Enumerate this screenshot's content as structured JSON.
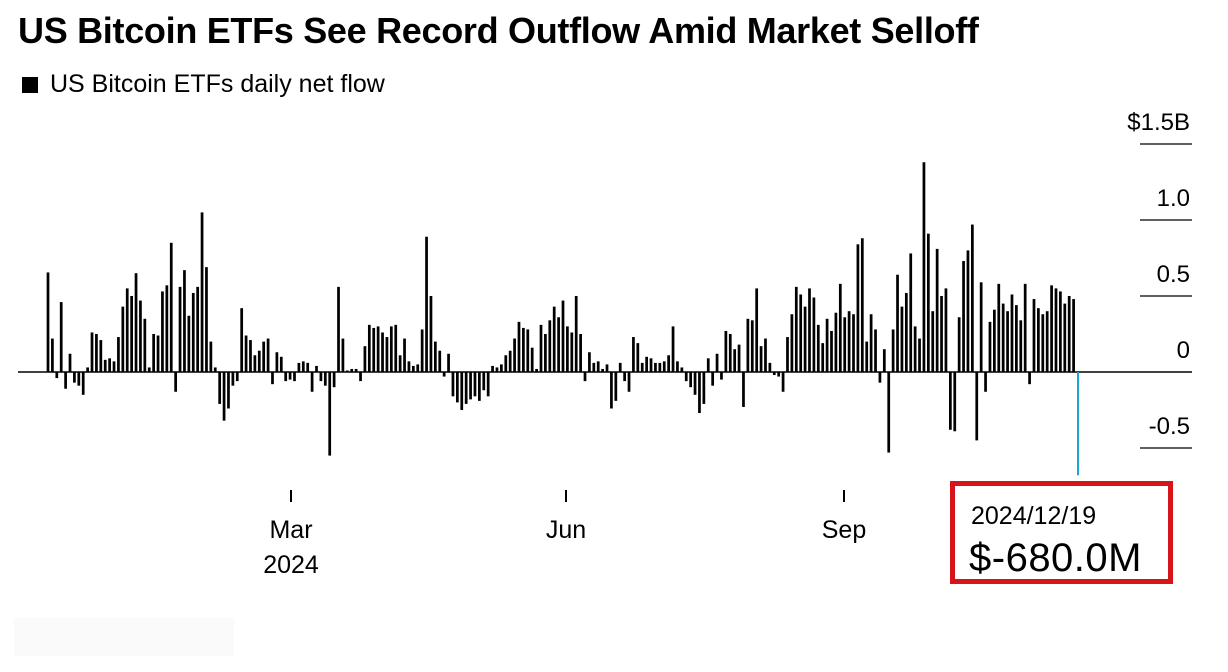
{
  "title": "US Bitcoin ETFs See Record Outflow Amid Market Selloff",
  "legend_label": "US Bitcoin ETFs daily net flow",
  "colors": {
    "bars": "#000000",
    "highlight": "#1aa7d8",
    "callout_border": "#d7141a",
    "gridline": "#000000"
  },
  "callout": {
    "date": "2024/12/19",
    "value": "$-680.0M"
  },
  "chart_data": {
    "type": "bar",
    "title": "US Bitcoin ETFs See Record Outflow Amid Market Selloff",
    "series": [
      {
        "name": "US Bitcoin ETFs daily net flow"
      }
    ],
    "ylabel": "",
    "ylim": [
      -0.5,
      1.5
    ],
    "y_ticks": [
      {
        "value": 1.5,
        "label": "$1.5B"
      },
      {
        "value": 1.0,
        "label": "1.0"
      },
      {
        "value": 0.5,
        "label": "0.5"
      },
      {
        "value": 0.0,
        "label": "0"
      },
      {
        "value": -0.5,
        "label": "-0.5"
      }
    ],
    "x_ticks": [
      {
        "date": "2024-03-01",
        "label": "Mar",
        "sublabel": "2024"
      },
      {
        "date": "2024-06-01",
        "label": "Jun",
        "sublabel": ""
      },
      {
        "date": "2024-09-01",
        "label": "Sep",
        "sublabel": ""
      }
    ],
    "highlight": {
      "date": "2024-12-19",
      "value": -0.68
    },
    "values": [
      0.655,
      0.22,
      -0.04,
      0.46,
      -0.11,
      0.12,
      -0.07,
      -0.09,
      -0.15,
      0.03,
      0.26,
      0.25,
      0.21,
      0.08,
      0.09,
      0.07,
      0.23,
      0.43,
      0.55,
      0.5,
      0.65,
      0.47,
      0.35,
      0.03,
      0.25,
      0.24,
      0.53,
      0.57,
      0.85,
      -0.13,
      0.56,
      0.67,
      0.37,
      0.52,
      0.56,
      1.05,
      0.69,
      0.2,
      0.03,
      -0.21,
      -0.32,
      -0.24,
      -0.09,
      -0.06,
      0.42,
      0.24,
      0.21,
      0.11,
      0.14,
      0.2,
      0.22,
      -0.08,
      0.13,
      0.1,
      -0.06,
      -0.05,
      -0.06,
      0.06,
      0.07,
      0.06,
      -0.13,
      0.04,
      -0.06,
      -0.09,
      -0.55,
      -0.1,
      0.56,
      0.22,
      0.01,
      0.02,
      0.02,
      -0.06,
      0.17,
      0.31,
      0.29,
      0.3,
      0.26,
      0.23,
      0.3,
      0.31,
      0.11,
      0.22,
      0.07,
      0.04,
      0.05,
      0.28,
      0.89,
      0.5,
      0.2,
      0.14,
      -0.03,
      0.12,
      -0.16,
      -0.2,
      -0.25,
      -0.21,
      -0.18,
      -0.16,
      -0.19,
      -0.12,
      -0.16,
      0.04,
      0.03,
      0.05,
      0.11,
      0.14,
      0.22,
      0.33,
      0.29,
      0.28,
      0.16,
      0.02,
      0.31,
      0.25,
      0.34,
      0.43,
      0.36,
      0.47,
      0.3,
      0.26,
      0.5,
      0.25,
      -0.06,
      0.13,
      0.06,
      0.07,
      0.02,
      0.05,
      -0.24,
      -0.19,
      0.06,
      -0.06,
      -0.13,
      0.23,
      0.19,
      0.06,
      0.1,
      0.09,
      0.06,
      0.06,
      0.07,
      0.11,
      0.3,
      0.07,
      0.03,
      -0.06,
      -0.1,
      -0.15,
      -0.27,
      -0.21,
      0.09,
      -0.09,
      0.12,
      -0.05,
      0.27,
      0.25,
      0.15,
      0.18,
      -0.23,
      0.35,
      0.34,
      0.55,
      0.17,
      0.22,
      0.06,
      -0.02,
      -0.03,
      -0.13,
      0.23,
      0.38,
      0.56,
      0.51,
      0.43,
      0.55,
      0.49,
      0.31,
      0.19,
      0.35,
      0.27,
      0.39,
      0.58,
      0.36,
      0.4,
      0.38,
      0.84,
      0.88,
      0.2,
      0.38,
      0.28,
      -0.07,
      0.15,
      -0.53,
      0.28,
      0.64,
      0.43,
      0.52,
      0.78,
      0.3,
      0.22,
      1.38,
      0.91,
      0.4,
      0.81,
      0.5,
      0.55,
      -0.38,
      -0.39,
      0.36,
      0.73,
      0.8,
      0.97,
      -0.45,
      0.59,
      -0.13,
      0.33,
      0.41,
      0.58,
      0.45,
      0.4,
      0.51,
      0.44,
      0.34,
      0.58,
      -0.08,
      0.48,
      0.42,
      0.38,
      0.4,
      0.57,
      0.55,
      0.53,
      0.45,
      0.5,
      0.48,
      -0.68
    ]
  }
}
